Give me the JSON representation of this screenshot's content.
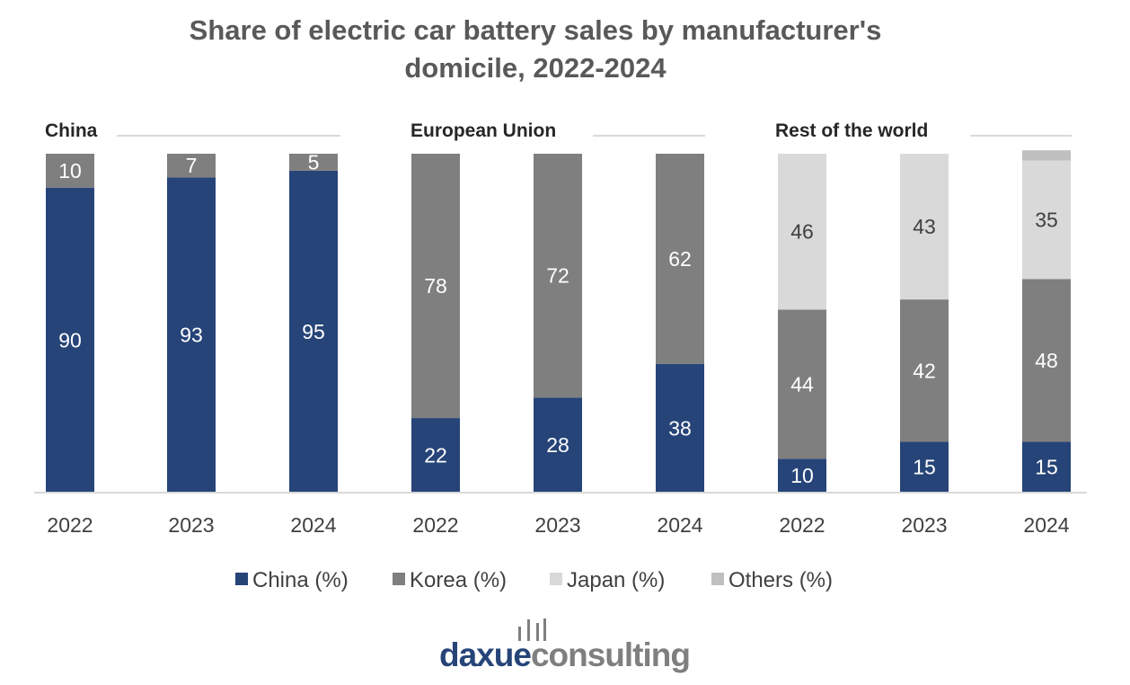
{
  "chart_data": {
    "type": "bar",
    "stacked": true,
    "title": "Share of electric car battery sales by manufacturer's domicile, 2022-2024",
    "title_lines": [
      "Share of electric car battery sales by manufacturer's",
      "domicile, 2022-2024"
    ],
    "ylim": [
      0,
      100
    ],
    "grid": false,
    "legend_position": "bottom",
    "panels": [
      {
        "name": "China",
        "categories": [
          "2022",
          "2023",
          "2024"
        ],
        "series": [
          {
            "name": "China (%)",
            "values": [
              90,
              93,
              95
            ]
          },
          {
            "name": "Korea (%)",
            "values": [
              10,
              7,
              5
            ]
          },
          {
            "name": "Japan (%)",
            "values": [
              0,
              0,
              0
            ]
          },
          {
            "name": "Others (%)",
            "values": [
              0,
              0,
              0
            ]
          }
        ]
      },
      {
        "name": "European Union",
        "categories": [
          "2022",
          "2023",
          "2024"
        ],
        "series": [
          {
            "name": "China (%)",
            "values": [
              22,
              28,
              38
            ]
          },
          {
            "name": "Korea (%)",
            "values": [
              78,
              72,
              62
            ]
          },
          {
            "name": "Japan (%)",
            "values": [
              0,
              0,
              0
            ]
          },
          {
            "name": "Others (%)",
            "values": [
              0,
              0,
              0
            ]
          }
        ]
      },
      {
        "name": "Rest of the world",
        "categories": [
          "2022",
          "2023",
          "2024"
        ],
        "series": [
          {
            "name": "China (%)",
            "values": [
              10,
              15,
              15
            ]
          },
          {
            "name": "Korea (%)",
            "values": [
              44,
              42,
              48
            ]
          },
          {
            "name": "Japan (%)",
            "values": [
              46,
              43,
              35
            ]
          },
          {
            "name": "Others (%)",
            "values": [
              0,
              0,
              3
            ]
          }
        ]
      }
    ],
    "colors": {
      "China (%)": "#264478",
      "Korea (%)": "#7f7f7f",
      "Japan (%)": "#d9d9d9",
      "Others (%)": "#bfbfbf"
    },
    "label_colors": {
      "China (%)": "#ffffff",
      "Korea (%)": "#ffffff",
      "Japan (%)": "#404040",
      "Others (%)": "#404040"
    },
    "label_threshold": 4
  },
  "logo": {
    "part1": "daxue",
    "part2": "consulting",
    "color1": "#264478",
    "color2": "#7f7f7f"
  }
}
